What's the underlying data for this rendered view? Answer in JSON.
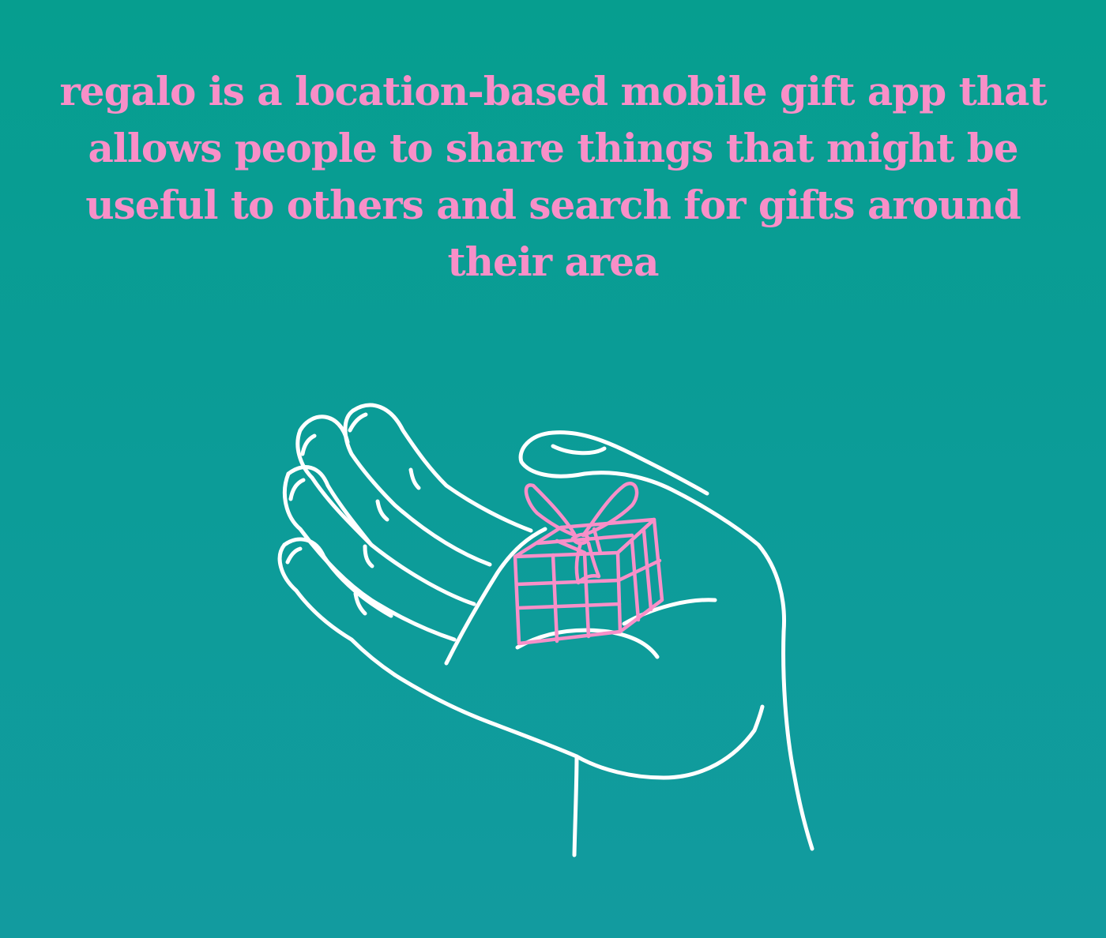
{
  "headline": "regalo is a location-based mobile gift app that allows people to share things that might be useful to others and search for gifts around their area",
  "illustration": {
    "subject": "hand-holding-gift-icon",
    "line_color": "#ffffff",
    "gift_color": "#f88fc8"
  },
  "colors": {
    "background_top": "#069e8f",
    "background_bottom": "#129b9f",
    "text": "#f88fc8"
  }
}
